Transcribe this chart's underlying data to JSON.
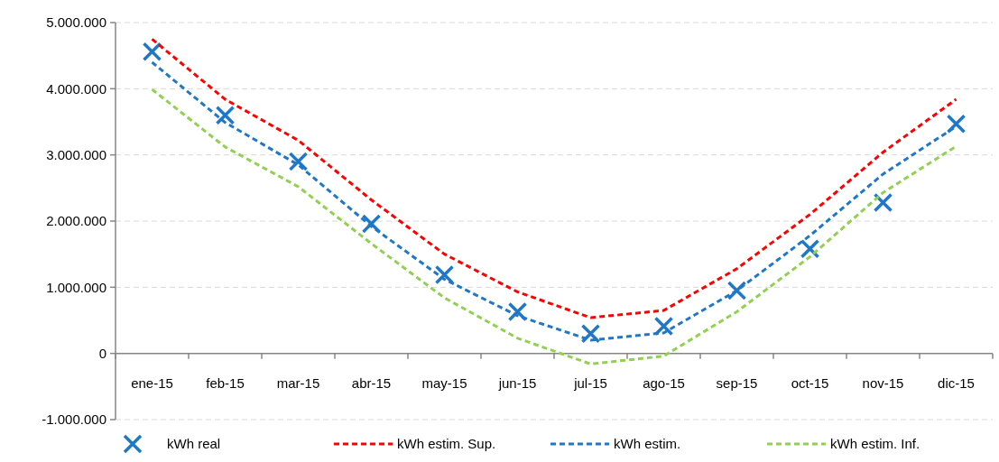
{
  "chart_data": {
    "type": "line",
    "categories": [
      "ene-15",
      "feb-15",
      "mar-15",
      "abr-15",
      "may-15",
      "jun-15",
      "jul-15",
      "ago-15",
      "sep-15",
      "oct-15",
      "nov-15",
      "dic-15"
    ],
    "series": [
      {
        "name": "kWh real",
        "type": "scatter",
        "marker": "cross",
        "color": "#1f77c8",
        "values": [
          4560000,
          3600000,
          2900000,
          1960000,
          1190000,
          630000,
          300000,
          410000,
          950000,
          1580000,
          2280000,
          3470000
        ]
      },
      {
        "name": "kWh estim. Sup.",
        "line_style": "dashed",
        "color": "#ff0000",
        "values": [
          4750000,
          3840000,
          3220000,
          2320000,
          1500000,
          930000,
          540000,
          650000,
          1280000,
          2100000,
          3040000,
          3840000
        ]
      },
      {
        "name": "kWh estim.",
        "line_style": "dashed",
        "color": "#1f77c8",
        "values": [
          4400000,
          3490000,
          2850000,
          1920000,
          1120000,
          570000,
          200000,
          310000,
          950000,
          1780000,
          2710000,
          3430000
        ]
      },
      {
        "name": "kWh estim. Inf.",
        "line_style": "dashed",
        "color": "#92d050",
        "values": [
          3990000,
          3120000,
          2520000,
          1660000,
          840000,
          230000,
          -160000,
          -40000,
          630000,
          1460000,
          2430000,
          3130000
        ]
      }
    ],
    "ylim": [
      -1000000,
      5000000
    ],
    "yticks": [
      {
        "value": -1000000,
        "label": "-1.000.000"
      },
      {
        "value": 0,
        "label": "0"
      },
      {
        "value": 1000000,
        "label": "1.000.000"
      },
      {
        "value": 2000000,
        "label": "2.000.000"
      },
      {
        "value": 3000000,
        "label": "3.000.000"
      },
      {
        "value": 4000000,
        "label": "4.000.000"
      },
      {
        "value": 5000000,
        "label": "5.000.000"
      }
    ],
    "grid": "y",
    "legend": "bottom"
  }
}
